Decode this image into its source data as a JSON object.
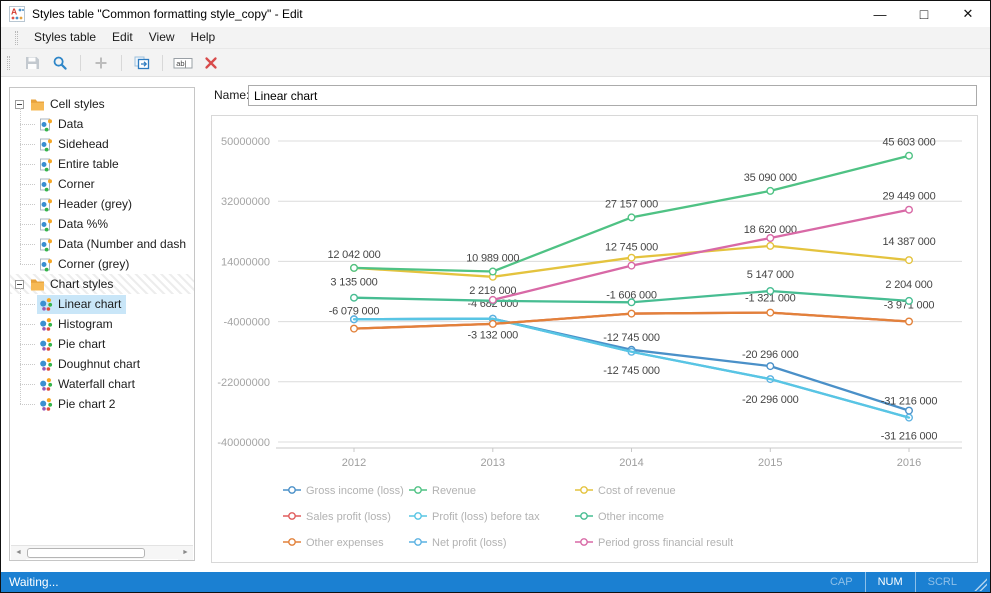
{
  "window": {
    "title": "Styles table \"Common formatting style_copy\" - Edit",
    "app_icon": "styles-table-app-icon",
    "controls": [
      "minimize",
      "maximize",
      "close"
    ]
  },
  "menu": {
    "items": [
      "Styles table",
      "Edit",
      "View",
      "Help"
    ]
  },
  "toolbar": {
    "buttons": [
      {
        "icon": "save-icon",
        "enabled": false
      },
      {
        "icon": "search-icon",
        "enabled": true
      },
      {
        "type": "separator"
      },
      {
        "icon": "add-icon",
        "enabled": false
      },
      {
        "type": "separator"
      },
      {
        "icon": "duplicate-icon",
        "enabled": true
      },
      {
        "type": "separator"
      },
      {
        "icon": "rename-icon",
        "enabled": true
      },
      {
        "icon": "delete-icon",
        "enabled": true
      }
    ]
  },
  "tree": {
    "groups": [
      {
        "label": "Cell styles",
        "icon": "folder-icon",
        "expanded": true,
        "item_icon": "cell-style-icon",
        "items": [
          "Data",
          "Sidehead",
          "Entire table",
          "Corner",
          "Header (grey)",
          "Data %%",
          "Data (Number and dash",
          "Corner (grey)"
        ]
      },
      {
        "label": "Chart styles",
        "icon": "folder-icon",
        "expanded": true,
        "hatched": true,
        "item_icon": "chart-style-icon",
        "items": [
          "Linear chart",
          "Histogram",
          "Pie chart",
          "Doughnut chart",
          "Waterfall chart",
          "Pie chart 2"
        ],
        "selected_item": "Linear chart"
      }
    ]
  },
  "name_field": {
    "label": "Name:",
    "value": "Linear chart"
  },
  "chart_data": {
    "type": "line",
    "x": [
      "2012",
      "2013",
      "2014",
      "2015",
      "2016"
    ],
    "ylim": [
      -40000000,
      50000000
    ],
    "yticks": [
      50000000,
      32000000,
      14000000,
      -4000000,
      -22000000,
      -40000000
    ],
    "grid": true,
    "legend_position": "bottom",
    "legend": [
      {
        "label": "Gross income (loss)",
        "color": "#4a90c8"
      },
      {
        "label": "Revenue",
        "color": "#4fc284"
      },
      {
        "label": "Cost of revenue",
        "color": "#e4c33e"
      },
      {
        "label": "Sales profit (loss)",
        "color": "#e05c5c"
      },
      {
        "label": "Profit (loss) before tax",
        "color": "#58c5e4"
      },
      {
        "label": "Other income",
        "color": "#47bd92"
      },
      {
        "label": "Other expenses",
        "color": "#e2813a"
      },
      {
        "label": "Net profit (loss)",
        "color": "#5cb2e2"
      },
      {
        "label": "Period gross financial result",
        "color": "#d869a6"
      }
    ],
    "series": [
      {
        "name": "Sales profit (loss)",
        "color": "#e05c5c",
        "markers": false,
        "values": [
          -6079000,
          -4682000,
          -1606000,
          -1321000,
          -3971000
        ],
        "labels": []
      },
      {
        "name": "Gross income (loss)",
        "color": "#4a90c8",
        "nudge": [
          0,
          0,
          -1,
          -10,
          -2
        ],
        "values": [
          -3300000,
          -3132000,
          -12745000,
          -20296000,
          -31216000
        ],
        "labels": [
          [
            2,
            "-12 745 000",
            -9
          ],
          [
            3,
            "-20 296 000",
            -8
          ],
          [
            4,
            "-31 216 000",
            -6
          ]
        ]
      },
      {
        "name": "Net profit (loss)",
        "color": "#5cb2e2",
        "nudge": [
          0,
          0,
          1,
          3,
          5
        ],
        "values": [
          -3300000,
          -3132000,
          -12745000,
          -20296000,
          -31216000
        ],
        "labels": [
          [
            1,
            "-3 132 000",
            20
          ],
          [
            2,
            "-12 745 000",
            22
          ],
          [
            3,
            "-20 296 000",
            24
          ],
          [
            4,
            "-31 216 000",
            22
          ]
        ]
      },
      {
        "name": "Profit (loss) before tax",
        "color": "#58c5e4",
        "markers": false,
        "nudge": [
          0,
          0,
          1,
          3,
          5
        ],
        "values": [
          -3300000,
          -3132000,
          -12745000,
          -20296000,
          -31216000
        ],
        "labels": []
      },
      {
        "name": "Other expenses",
        "color": "#e2813a",
        "values": [
          -6079000,
          -4682000,
          -1606000,
          -1321000,
          -3971000
        ],
        "labels": [
          [
            0,
            "-6 079 000",
            -14
          ],
          [
            1,
            "-4 682 000",
            -17
          ],
          [
            2,
            "-1 606 000",
            -15
          ],
          [
            3,
            "-1 321 000",
            -11
          ],
          [
            4,
            "-3 971 000",
            -13
          ]
        ]
      },
      {
        "name": "Other income",
        "color": "#47bd92",
        "values": [
          3135000,
          2219000,
          1760000,
          5147000,
          2204000
        ],
        "labels": [
          [
            0,
            "3 135 000",
            -12
          ],
          [
            1,
            "2 219 000",
            -7
          ],
          [
            3,
            "5 147 000",
            -13
          ],
          [
            4,
            "2 204 000",
            -13
          ]
        ]
      },
      {
        "name": "Cost of revenue",
        "color": "#e4c33e",
        "values": [
          12042000,
          9400000,
          15100000,
          18620000,
          14387000
        ],
        "labels": [
          [
            3,
            "18 620 000",
            -13
          ],
          [
            4,
            "14 387 000",
            -15
          ]
        ]
      },
      {
        "name": "Period gross financial result",
        "color": "#d869a6",
        "values": [
          null,
          2500000,
          12745000,
          21000000,
          29449000
        ],
        "labels": [
          [
            2,
            "12 745 000",
            -15
          ],
          [
            4,
            "29 449 000",
            -10
          ]
        ]
      },
      {
        "name": "Revenue",
        "color": "#4fc284",
        "values": [
          12042000,
          10989000,
          27157000,
          35090000,
          45603000
        ],
        "labels": [
          [
            0,
            "12 042 000",
            -10
          ],
          [
            1,
            "10 989 000",
            -10
          ],
          [
            2,
            "27 157 000",
            -10
          ],
          [
            3,
            "35 090 000",
            -10
          ],
          [
            4,
            "45 603 000",
            -10
          ]
        ]
      }
    ]
  },
  "status_bar": {
    "text": "Waiting...",
    "indicators": [
      {
        "label": "CAP",
        "active": false
      },
      {
        "label": "NUM",
        "active": true
      },
      {
        "label": "SCRL",
        "active": false
      }
    ]
  }
}
